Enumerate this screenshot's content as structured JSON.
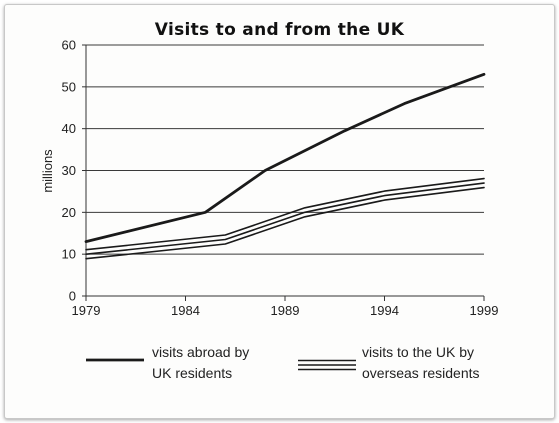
{
  "chart_data": {
    "type": "line",
    "title": "Visits to and from the UK",
    "xlabel": "",
    "ylabel": "millions",
    "xlim": [
      1979,
      1999
    ],
    "ylim": [
      0,
      60
    ],
    "x_ticks": [
      "1979",
      "1984",
      "1989",
      "1994",
      "1999"
    ],
    "y_ticks": [
      "0",
      "10",
      "20",
      "30",
      "40",
      "50",
      "60"
    ],
    "grid": "horizontal",
    "legend_position": "bottom",
    "series": [
      {
        "name": "visits abroad by UK residents",
        "style": "single-line",
        "points": [
          [
            1979,
            13
          ],
          [
            1985,
            20
          ],
          [
            1988,
            30
          ],
          [
            1992,
            39.5
          ],
          [
            1995,
            46
          ],
          [
            1999,
            53
          ]
        ]
      },
      {
        "name": "visits to the UK by overseas residents",
        "style": "triple-line",
        "points": [
          [
            1979,
            10
          ],
          [
            1986,
            13.5
          ],
          [
            1990,
            20
          ],
          [
            1994,
            24
          ],
          [
            1999,
            27
          ]
        ]
      }
    ],
    "legend": [
      {
        "line1": "visits abroad by",
        "line2": "UK residents"
      },
      {
        "line1": "visits to the UK by",
        "line2": "overseas residents"
      }
    ]
  },
  "colors": {
    "line": "#1a1a1a",
    "grid": "#3a3a3a",
    "axis": "#333333"
  }
}
